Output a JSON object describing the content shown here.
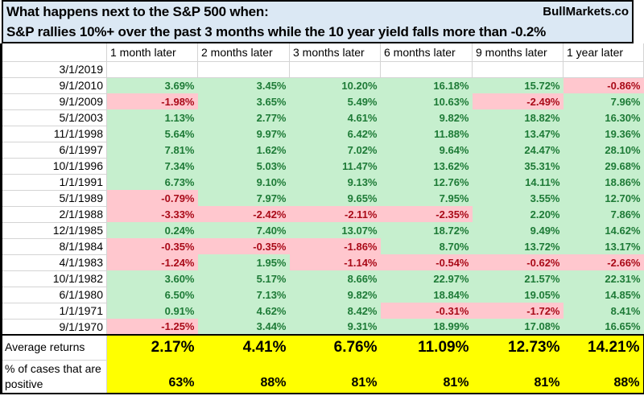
{
  "title": {
    "line1": "What happens next to the S&P 500 when:",
    "brand": "BullMarkets.co",
    "line2": "S&P rallies 10%+ over the past 3 months while the 10 year yield falls more than -0.2%"
  },
  "chart_data": {
    "type": "table",
    "title": "What happens next to the S&P 500 when: S&P rallies 10%+ over the past 3 months while the 10 year yield falls more than -0.2%",
    "columns": [
      "1 month later",
      "2 months later",
      "3 months later",
      "6 months later",
      "9 months later",
      "1 year later"
    ],
    "rows": [
      {
        "date": "3/1/2019",
        "values": [
          "",
          "",
          "",
          "",
          "",
          ""
        ]
      },
      {
        "date": "9/1/2010",
        "values": [
          "3.69%",
          "3.45%",
          "10.20%",
          "16.18%",
          "15.72%",
          "-0.86%"
        ]
      },
      {
        "date": "9/1/2009",
        "values": [
          "-1.98%",
          "3.65%",
          "5.49%",
          "10.63%",
          "-2.49%",
          "7.96%"
        ]
      },
      {
        "date": "5/1/2003",
        "values": [
          "1.13%",
          "2.77%",
          "4.61%",
          "9.82%",
          "18.82%",
          "16.30%"
        ]
      },
      {
        "date": "11/1/1998",
        "values": [
          "5.64%",
          "9.97%",
          "6.42%",
          "11.88%",
          "13.47%",
          "19.36%"
        ]
      },
      {
        "date": "6/1/1997",
        "values": [
          "7.81%",
          "1.62%",
          "7.02%",
          "9.64%",
          "24.47%",
          "28.10%"
        ]
      },
      {
        "date": "10/1/1996",
        "values": [
          "7.34%",
          "5.03%",
          "11.47%",
          "13.62%",
          "35.31%",
          "29.68%"
        ]
      },
      {
        "date": "1/1/1991",
        "values": [
          "6.73%",
          "9.10%",
          "9.13%",
          "12.76%",
          "14.11%",
          "18.86%"
        ]
      },
      {
        "date": "5/1/1989",
        "values": [
          "-0.79%",
          "7.97%",
          "9.65%",
          "7.95%",
          "3.55%",
          "12.70%"
        ]
      },
      {
        "date": "2/1/1988",
        "values": [
          "-3.33%",
          "-2.42%",
          "-2.11%",
          "-2.35%",
          "2.20%",
          "7.86%"
        ]
      },
      {
        "date": "12/1/1985",
        "values": [
          "0.24%",
          "7.40%",
          "13.07%",
          "18.72%",
          "9.49%",
          "14.62%"
        ]
      },
      {
        "date": "8/1/1984",
        "values": [
          "-0.35%",
          "-0.35%",
          "-1.86%",
          "8.70%",
          "13.72%",
          "13.17%"
        ]
      },
      {
        "date": "4/1/1983",
        "values": [
          "-1.24%",
          "1.95%",
          "-1.14%",
          "-0.54%",
          "-0.62%",
          "-2.66%"
        ]
      },
      {
        "date": "10/1/1982",
        "values": [
          "3.60%",
          "5.17%",
          "8.66%",
          "22.97%",
          "21.57%",
          "22.31%"
        ]
      },
      {
        "date": "6/1/1980",
        "values": [
          "6.50%",
          "7.13%",
          "9.82%",
          "18.84%",
          "19.05%",
          "14.85%"
        ]
      },
      {
        "date": "1/1/1971",
        "values": [
          "0.91%",
          "4.62%",
          "8.42%",
          "-0.31%",
          "-1.72%",
          "8.41%"
        ]
      },
      {
        "date": "9/1/1970",
        "values": [
          "-1.25%",
          "3.44%",
          "9.31%",
          "18.99%",
          "17.08%",
          "16.65%"
        ]
      }
    ],
    "summary": {
      "avg_label": "Average returns",
      "avg_values": [
        "2.17%",
        "4.41%",
        "6.76%",
        "11.09%",
        "12.73%",
        "14.21%"
      ],
      "pct_label": "% of cases that are positive",
      "pct_values": [
        "63%",
        "88%",
        "81%",
        "81%",
        "81%",
        "88%"
      ]
    },
    "legend": {
      "positive_cells": "green",
      "negative_cells": "pink",
      "summary_cells": "yellow"
    }
  },
  "colors": {
    "title_bg": "#DBE8F4",
    "positive_bg": "#C6EFCE",
    "positive_text": "#1D7A36",
    "negative_bg": "#FFC7CE",
    "negative_text": "#A90A18",
    "summary_bg": "#FFFF00",
    "grid_line": "#D4D4D4",
    "border": "#000000"
  }
}
